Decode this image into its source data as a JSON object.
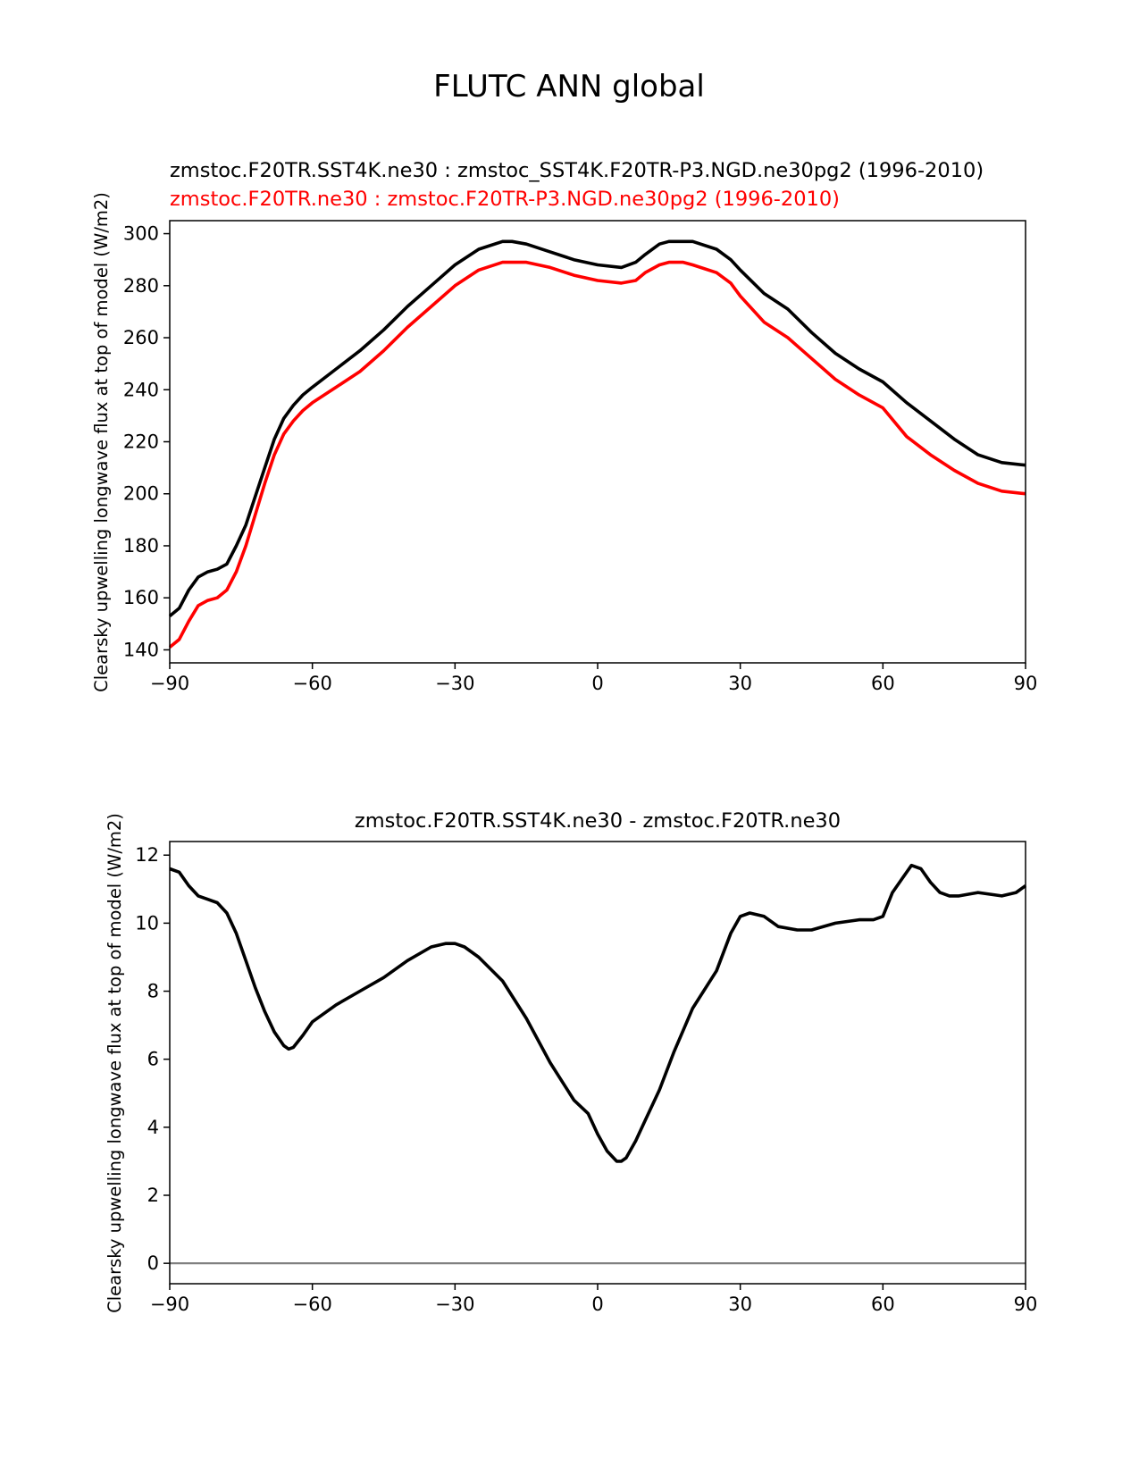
{
  "figure": {
    "suptitle": "FLUTC ANN global"
  },
  "colors": {
    "test": "#000000",
    "reference": "#ff0000",
    "zero_line": "#808080",
    "axes": "#000000"
  },
  "chart_data": [
    {
      "type": "line",
      "panel": "top",
      "title_test": "zmstoc.F20TR.SST4K.ne30 : zmstoc_SST4K.F20TR-P3.NGD.ne30pg2 (1996-2010)",
      "title_reference": "zmstoc.F20TR.ne30 : zmstoc.F20TR-P3.NGD.ne30pg2 (1996-2010)",
      "xlabel": "",
      "ylabel": "Clearsky upwelling longwave flux at top of model (W/m2)",
      "xlim": [
        -90,
        90
      ],
      "ylim": [
        135,
        305
      ],
      "xticks": [
        -90,
        -60,
        -30,
        0,
        30,
        60,
        90
      ],
      "xtick_labels": [
        "−90",
        "−60",
        "−30",
        "0",
        "30",
        "60",
        "90"
      ],
      "yticks": [
        140,
        160,
        180,
        200,
        220,
        240,
        260,
        280,
        300
      ],
      "ytick_labels": [
        "140",
        "160",
        "180",
        "200",
        "220",
        "240",
        "260",
        "280",
        "300"
      ],
      "series": [
        {
          "name": "test",
          "color": "#000000",
          "x": [
            -90,
            -88,
            -86,
            -84,
            -82,
            -80,
            -78,
            -76,
            -74,
            -72,
            -70,
            -68,
            -66,
            -64,
            -62,
            -60,
            -55,
            -50,
            -45,
            -40,
            -35,
            -30,
            -25,
            -20,
            -18,
            -15,
            -10,
            -5,
            0,
            5,
            8,
            10,
            13,
            15,
            18,
            20,
            25,
            28,
            30,
            35,
            40,
            45,
            50,
            55,
            60,
            65,
            70,
            75,
            80,
            85,
            90
          ],
          "y": [
            153,
            156,
            163,
            168,
            170,
            171,
            173,
            180,
            188,
            199,
            210,
            221,
            229,
            234,
            238,
            241,
            248,
            255,
            263,
            272,
            280,
            288,
            294,
            297,
            297,
            296,
            293,
            290,
            288,
            287,
            289,
            292,
            296,
            297,
            297,
            297,
            294,
            290,
            286,
            277,
            271,
            262,
            254,
            248,
            243,
            235,
            228,
            221,
            215,
            212,
            211
          ]
        },
        {
          "name": "reference",
          "color": "#ff0000",
          "x": [
            -90,
            -88,
            -86,
            -84,
            -82,
            -80,
            -78,
            -76,
            -74,
            -72,
            -70,
            -68,
            -66,
            -64,
            -62,
            -60,
            -55,
            -50,
            -45,
            -40,
            -35,
            -30,
            -25,
            -20,
            -18,
            -15,
            -10,
            -5,
            0,
            5,
            8,
            10,
            13,
            15,
            18,
            20,
            25,
            28,
            30,
            35,
            40,
            45,
            50,
            55,
            60,
            65,
            70,
            75,
            80,
            85,
            90
          ],
          "y": [
            141,
            144,
            151,
            157,
            159,
            160,
            163,
            170,
            180,
            192,
            204,
            215,
            223,
            228,
            232,
            235,
            241,
            247,
            255,
            264,
            272,
            280,
            286,
            289,
            289,
            289,
            287,
            284,
            282,
            281,
            282,
            285,
            288,
            289,
            289,
            288,
            285,
            281,
            276,
            266,
            260,
            252,
            244,
            238,
            233,
            222,
            215,
            209,
            204,
            201,
            200
          ]
        }
      ]
    },
    {
      "type": "line",
      "panel": "bottom",
      "title": "zmstoc.F20TR.SST4K.ne30 - zmstoc.F20TR.ne30",
      "xlabel": "",
      "ylabel": "Clearsky upwelling longwave flux at top of model (W/m2)",
      "xlim": [
        -90,
        90
      ],
      "ylim": [
        -0.6,
        12.4
      ],
      "xticks": [
        -90,
        -60,
        -30,
        0,
        30,
        60,
        90
      ],
      "xtick_labels": [
        "−90",
        "−60",
        "−30",
        "0",
        "30",
        "60",
        "90"
      ],
      "yticks": [
        0,
        2,
        4,
        6,
        8,
        10,
        12
      ],
      "ytick_labels": [
        "0",
        "2",
        "4",
        "6",
        "8",
        "10",
        "12"
      ],
      "reference_line": 0,
      "series": [
        {
          "name": "difference",
          "color": "#000000",
          "x": [
            -90,
            -88,
            -86,
            -84,
            -82,
            -80,
            -78,
            -76,
            -74,
            -72,
            -70,
            -68,
            -66,
            -65,
            -64,
            -62,
            -60,
            -55,
            -50,
            -45,
            -40,
            -35,
            -32,
            -30,
            -28,
            -25,
            -20,
            -15,
            -10,
            -5,
            -2,
            0,
            2,
            4,
            5,
            6,
            8,
            10,
            13,
            16,
            20,
            25,
            28,
            30,
            32,
            35,
            38,
            42,
            45,
            50,
            55,
            58,
            60,
            62,
            64,
            66,
            68,
            70,
            72,
            74,
            76,
            78,
            80,
            85,
            88,
            90
          ],
          "y": [
            11.6,
            11.5,
            11.1,
            10.8,
            10.7,
            10.6,
            10.3,
            9.7,
            8.9,
            8.1,
            7.4,
            6.8,
            6.4,
            6.3,
            6.35,
            6.7,
            7.1,
            7.6,
            8.0,
            8.4,
            8.9,
            9.3,
            9.4,
            9.4,
            9.3,
            9.0,
            8.3,
            7.2,
            5.9,
            4.8,
            4.4,
            3.8,
            3.3,
            3.0,
            3.0,
            3.1,
            3.6,
            4.2,
            5.1,
            6.2,
            7.5,
            8.6,
            9.7,
            10.2,
            10.3,
            10.2,
            9.9,
            9.8,
            9.8,
            10.0,
            10.1,
            10.1,
            10.2,
            10.9,
            11.3,
            11.7,
            11.6,
            11.2,
            10.9,
            10.8,
            10.8,
            10.85,
            10.9,
            10.8,
            10.9,
            11.1
          ]
        }
      ]
    }
  ]
}
